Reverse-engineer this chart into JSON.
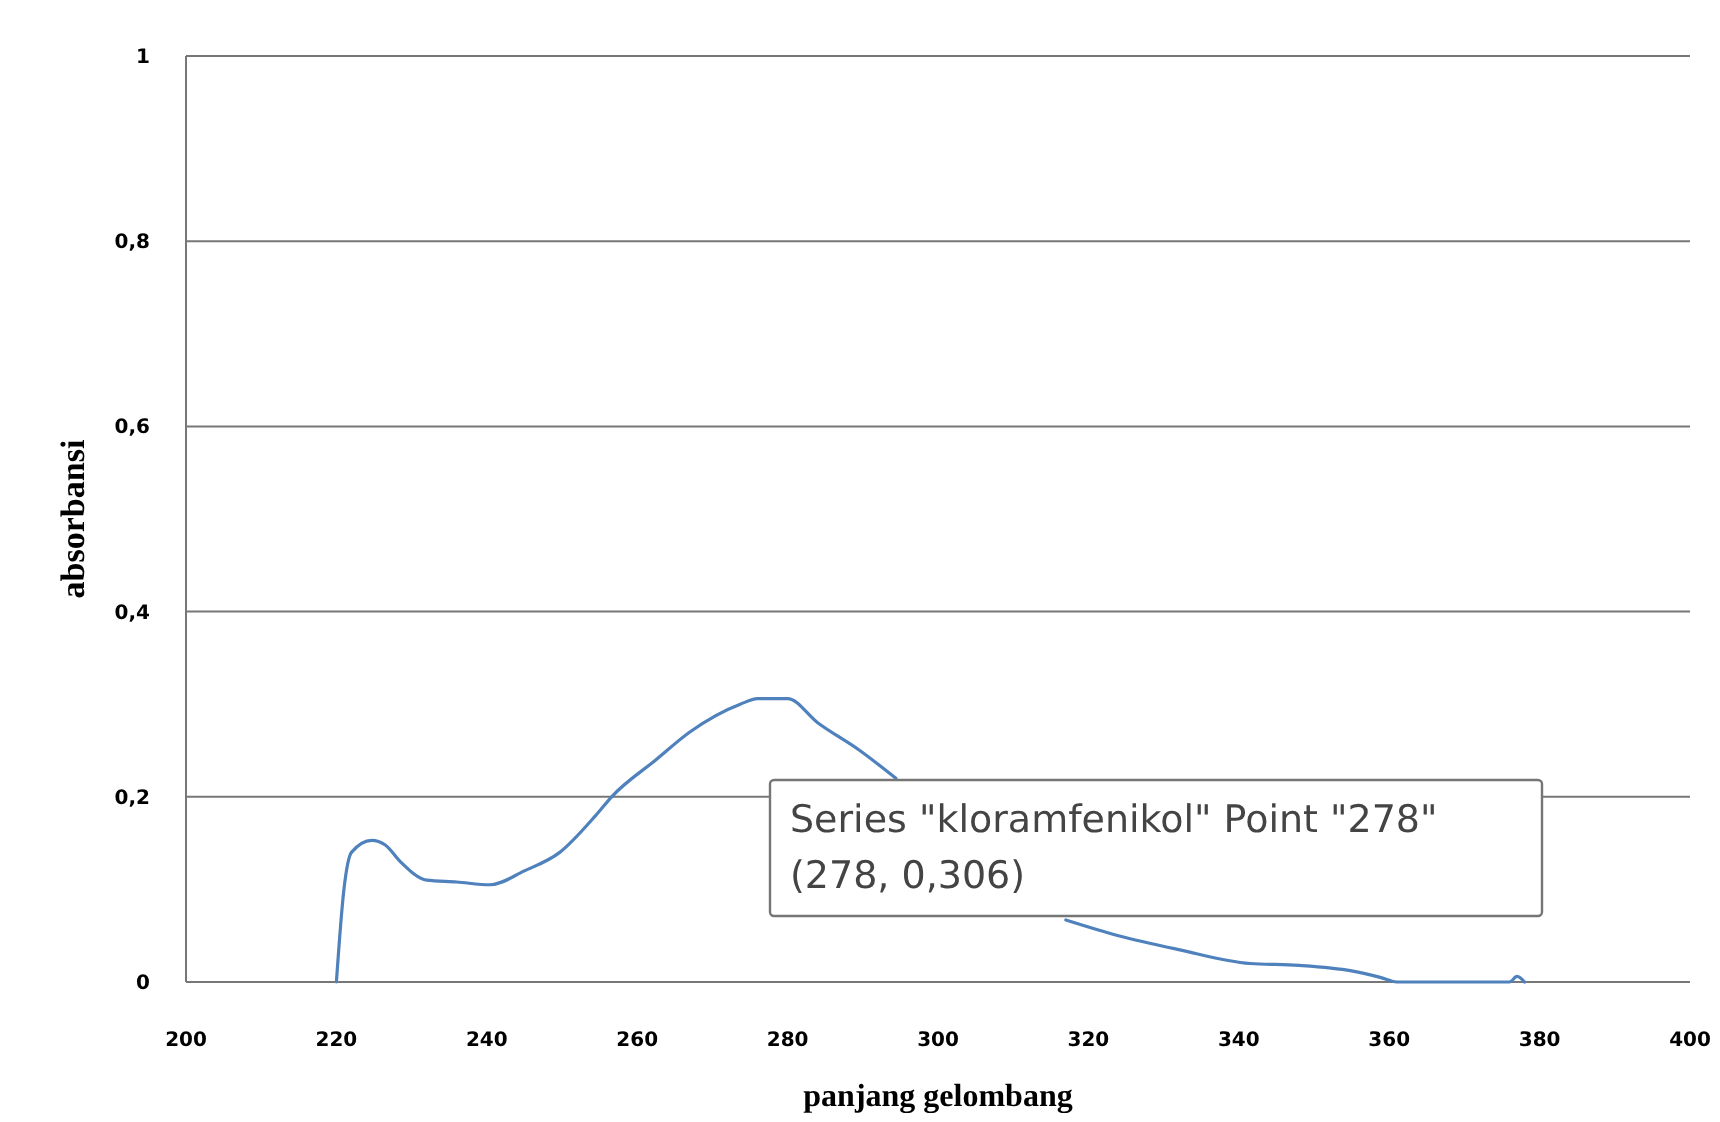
{
  "chart_data": {
    "type": "line",
    "xlabel": "panjang gelombang",
    "ylabel": "absorbansi",
    "series": [
      {
        "color": "#4f81bd",
        "x": [
          220,
          221,
          222,
          224.7,
          226.5,
          228.5,
          232,
          236,
          240.4,
          245,
          249.7,
          254.5,
          256.6,
          262.5,
          267,
          273.7,
          276,
          280,
          284,
          289.6,
          294.4,
          305,
          317,
          324,
          332,
          341.5,
          348,
          355,
          358.8,
          361,
          376,
          377,
          378
        ],
        "values": [
          0,
          0.1,
          0.14,
          0.153,
          0.148,
          0.13,
          0.11,
          0.108,
          0.105,
          0.12,
          0.14,
          0.18,
          0.2,
          0.24,
          0.27,
          0.3,
          0.306,
          0.306,
          0.28,
          0.25,
          0.22,
          null,
          0.067,
          0.05,
          0.035,
          0.02,
          0.018,
          0.012,
          0.005,
          0,
          0,
          0.006,
          0
        ]
      }
    ],
    "xlim": [
      200,
      400
    ],
    "ylim": [
      0,
      1
    ],
    "xticks": [
      200,
      220,
      240,
      260,
      280,
      300,
      320,
      340,
      360,
      380,
      400
    ],
    "yticks": [
      0,
      {
        "value": 0.2,
        "label": "0,2"
      },
      {
        "value": 0.4,
        "label": "0,4"
      },
      {
        "value": 0.6,
        "label": "0,6"
      },
      {
        "value": 0.8,
        "label": "0,8"
      },
      1
    ],
    "grid": "y",
    "annotations": [
      "Series \"kloramfenikol\" Point \"278\"\n(278, 0,306)"
    ]
  }
}
